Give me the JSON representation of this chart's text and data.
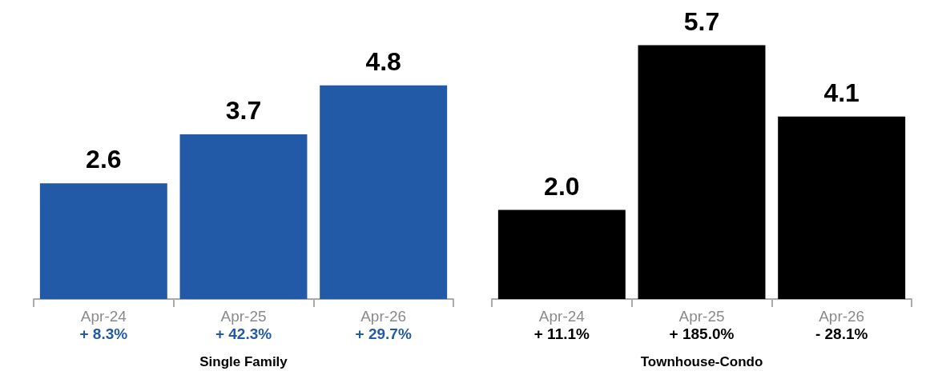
{
  "chart_data": [
    {
      "type": "bar",
      "xlabel": "Single Family",
      "categories": [
        "Apr-24",
        "Apr-25",
        "Apr-26"
      ],
      "values": [
        2.6,
        3.7,
        4.8
      ],
      "color": "#235aa8",
      "value_labels": [
        "2.6",
        "3.7",
        "4.8"
      ],
      "annotations": [
        "+ 8.3%",
        "+ 42.3%",
        "+ 29.7%"
      ]
    },
    {
      "type": "bar",
      "xlabel": "Townhouse-Condo",
      "categories": [
        "Apr-24",
        "Apr-25",
        "Apr-26"
      ],
      "values": [
        2.0,
        5.7,
        4.1
      ],
      "color": "#000000",
      "value_labels": [
        "2.0",
        "5.7",
        "4.1"
      ],
      "annotations": [
        "+ 11.1%",
        "+ 185.0%",
        "- 28.1%"
      ]
    }
  ]
}
